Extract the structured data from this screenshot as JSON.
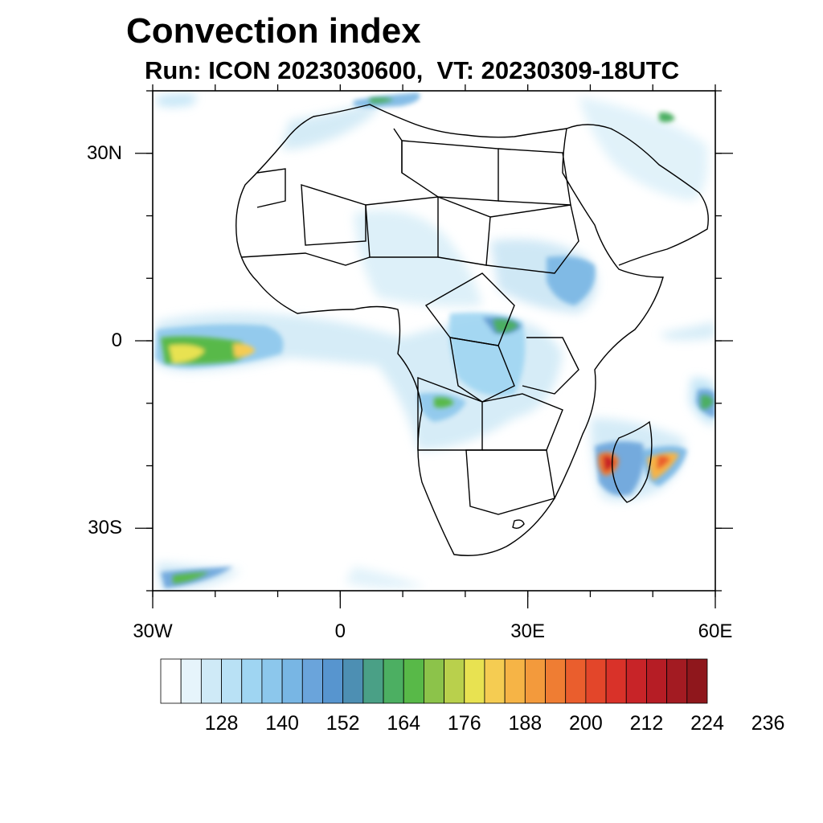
{
  "header": {
    "title": "Convection index",
    "subtitle": "Run: ICON 2023030600,  VT: 20230309-18UTC"
  },
  "axes": {
    "lon_ticks": [
      {
        "value": -30,
        "label": "30W"
      },
      {
        "value": 0,
        "label": "0"
      },
      {
        "value": 30,
        "label": "30E"
      },
      {
        "value": 60,
        "label": "60E"
      }
    ],
    "lat_ticks": [
      {
        "value": 30,
        "label": "30N"
      },
      {
        "value": 0,
        "label": "0"
      },
      {
        "value": -30,
        "label": "30S"
      }
    ],
    "lon_range": [
      -30,
      60
    ],
    "lat_range": [
      -40,
      40
    ]
  },
  "colorbar": {
    "colors": [
      "#ffffff",
      "#e6f4fb",
      "#cfeaf7",
      "#b9e1f5",
      "#9fd5f2",
      "#8cc7ec",
      "#78b6e4",
      "#6aa4db",
      "#5795cf",
      "#4d8fb3",
      "#4aa086",
      "#4caf62",
      "#58b948",
      "#8cc34a",
      "#b9d04c",
      "#e8e251",
      "#f5cc52",
      "#f6b446",
      "#f39a3c",
      "#ef7d33",
      "#ea5e2d",
      "#e3462a",
      "#d93229",
      "#c82428",
      "#b61d25",
      "#a31b22",
      "#8f171c"
    ],
    "tick_labels": [
      "128",
      "140",
      "152",
      "164",
      "176",
      "188",
      "200",
      "212",
      "224",
      "236"
    ]
  }
}
